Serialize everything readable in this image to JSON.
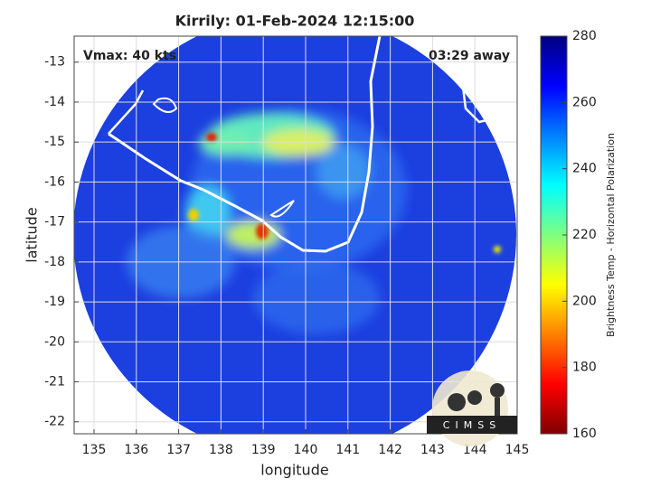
{
  "chart_data": {
    "type": "map",
    "title": "Kirrily: 01-Feb-2024 12:15:00",
    "annotations": [
      "Vmax: 40 kts",
      "03:29 away"
    ],
    "xlabel": "longitude",
    "ylabel": "latitude",
    "xlim": [
      134.53,
      145.0
    ],
    "xticks": [
      135,
      136,
      137,
      138,
      139,
      140,
      141,
      142,
      143,
      144,
      145
    ],
    "ylim": [
      -22.3,
      -12.35
    ],
    "yticks": [
      -13,
      -14,
      -15,
      -16,
      -17,
      -18,
      -19,
      -20,
      -21,
      -22
    ],
    "grid": true,
    "colorbar": {
      "label": "Brightness Temp - Horizontal Polarization",
      "clim": [
        160,
        280
      ],
      "ticks": [
        160,
        180,
        200,
        220,
        240,
        260,
        280
      ],
      "colors": [
        "#800000",
        "#ff0000",
        "#ff8000",
        "#ffff00",
        "#80ff80",
        "#00ffff",
        "#0080ff",
        "#0000ff",
        "#000080"
      ]
    },
    "logo_text": "CIMSS"
  }
}
